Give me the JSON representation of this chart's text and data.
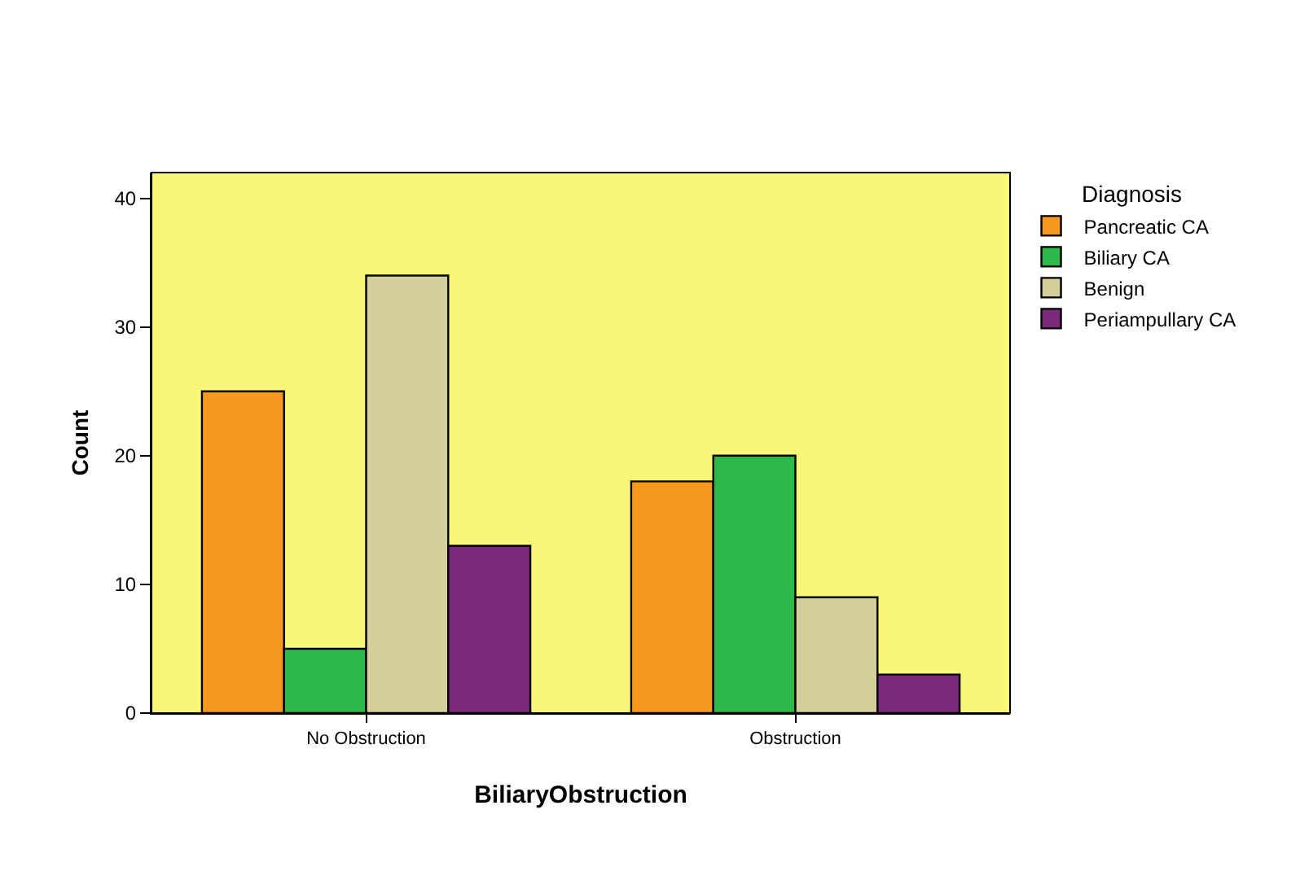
{
  "chart_data": {
    "type": "bar",
    "xlabel": "BiliaryObstruction",
    "ylabel": "Count",
    "legend_title": "Diagnosis",
    "categories": [
      "No Obstruction",
      "Obstruction"
    ],
    "series": [
      {
        "name": "Pancreatic CA",
        "color": "#f7991f",
        "values": [
          25,
          18
        ]
      },
      {
        "name": "Biliary CA",
        "color": "#2db84a",
        "values": [
          5,
          20
        ]
      },
      {
        "name": "Benign",
        "color": "#d4cf9b",
        "values": [
          34,
          9
        ]
      },
      {
        "name": "Periampullary CA",
        "color": "#7b2a7a",
        "values": [
          13,
          3
        ]
      }
    ],
    "ylim": [
      0,
      42
    ],
    "yticks": [
      0,
      10,
      20,
      30,
      40
    ],
    "grid": false,
    "legend": "top right"
  }
}
